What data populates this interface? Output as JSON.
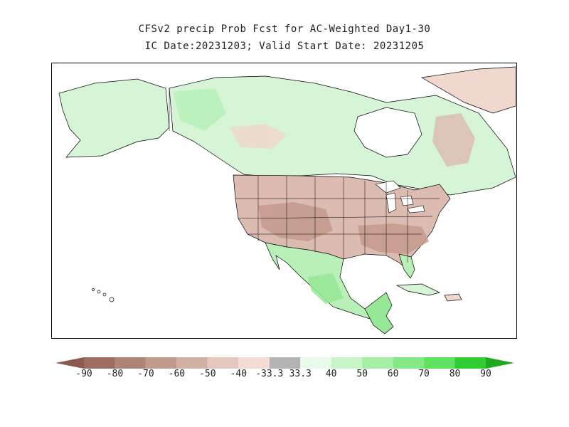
{
  "title": {
    "line1": "CFSv2 precip Prob Fcst for AC-Weighted Day1-30",
    "line2": "IC Date:20231203; Valid Start Date: 20231205"
  },
  "colors": {
    "ocean": "#ffffff",
    "land_neutral": "#ffffff",
    "dry_40": "#f0d8cf",
    "dry_50": "#dcbcb0",
    "dry_60": "#c49a8d",
    "wet_40": "#d6f5d6",
    "wet_50": "#b8f0b8",
    "wet_60": "#96e896",
    "near_normal": "#b0b0b0",
    "boundary": "#000000"
  },
  "colorbar": {
    "labels": [
      "-90",
      "-80",
      "-70",
      "-60",
      "-50",
      "-40",
      "-33.3",
      "33.3",
      "40",
      "50",
      "60",
      "70",
      "80",
      "90"
    ],
    "colors": [
      "#8a5a4e",
      "#9c6e62",
      "#ae8477",
      "#c09a8d",
      "#d2b0a4",
      "#e4c8bd",
      "#f2dcd5",
      "#b4b4b4",
      "#eafbea",
      "#c8f6c8",
      "#a6f0a6",
      "#84ea84",
      "#5fe25f",
      "#32cd32",
      "#1fa91f"
    ]
  }
}
